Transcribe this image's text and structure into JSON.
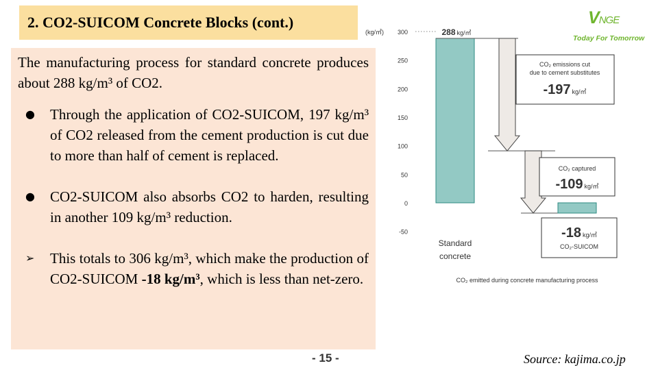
{
  "slide": {
    "title": "2. CO2-SUICOM Concrete Blocks (cont.)",
    "page_number": "- 15 -",
    "source": "Source: kajima.co.jp"
  },
  "logo": {
    "mark_v": "V",
    "mark_rest": "NGE",
    "tagline": "Today For Tomorrow",
    "color": "#6fb52e"
  },
  "text": {
    "intro": "The manufacturing process for standard concrete produces about 288 kg/m³ of CO2.",
    "bullets": [
      {
        "marker": "●",
        "text": "Through the application of CO2-SUICOM, 197 kg/m³ of CO2 released from the cement production is cut due to more than half of cement is replaced."
      },
      {
        "marker": "●",
        "text": "CO2-SUICOM also absorbs CO2 to harden, resulting in another 109 kg/m³ reduction."
      }
    ],
    "summary_marker": "➢",
    "summary_before": "This totals to 306 kg/m³, which make the production of CO2-SUICOM ",
    "summary_bold": "-18 kg/m³",
    "summary_after": ", which is less than net-zero."
  },
  "chart_data": {
    "type": "bar",
    "unit_label": "(kg/㎥)",
    "ylim": [
      -50,
      300
    ],
    "yticks": [
      "300",
      "250",
      "200",
      "150",
      "100",
      "50",
      "0",
      "-50"
    ],
    "ytick_values": [
      300,
      250,
      200,
      150,
      100,
      50,
      0,
      -50
    ],
    "grid": false,
    "bars": [
      {
        "category": "Standard concrete",
        "category_lines": [
          "Standard",
          "concrete"
        ],
        "value": 288
      },
      {
        "category": "CO2-SUICOM",
        "value": -18
      }
    ],
    "reductions": [
      {
        "line1": "CO₂ emissions cut",
        "line2": "due to cement substitutes",
        "value": "-197",
        "amount": 197
      },
      {
        "line1": "CO₂ captured",
        "value": "-109",
        "amount": 109
      }
    ],
    "top_label": {
      "value": "288",
      "unit": "kg/㎥"
    },
    "final_label": {
      "value": "-18",
      "unit": "kg/㎥",
      "name": "CO₂-SUICOM"
    },
    "value_unit": "kg/㎥",
    "caption": "CO₂ emitted during concrete manufacturing process",
    "colors": {
      "bar_fill": "#93c9c4",
      "bar_stroke": "#2e8a82",
      "arrow_fill": "#eeeae6",
      "text": "#333333"
    }
  }
}
